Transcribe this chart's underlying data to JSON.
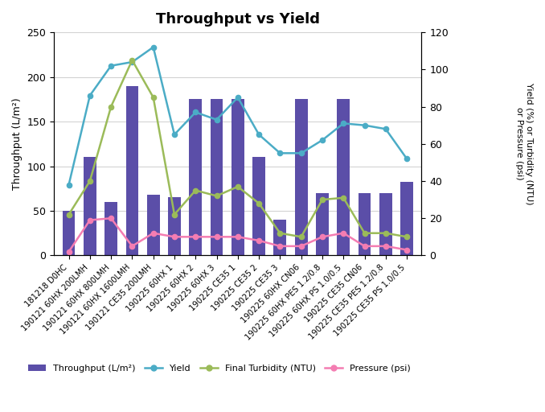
{
  "categories": [
    "181218 D0HC",
    "190121 60HX 200LMH",
    "190121 60HX 800LMH",
    "190121 60HX 1600LMH",
    "190121 CE35 200LMH",
    "190225 60HX 1",
    "190225 60HX 2",
    "190225 60HX 3",
    "190225 CE35 1",
    "190225 CE35 2",
    "190225 CE35 3",
    "190225 60HX CN06",
    "190225 60HX PES 1.2/0.8",
    "190225 60HX PS 1.0/0.5",
    "190225 CE35 CN06",
    "190225 CE35 PES 1.2/0.8",
    "190225 CE35 PS 1.0/0.5"
  ],
  "throughput": [
    50,
    110,
    60,
    190,
    68,
    65,
    175,
    175,
    175,
    110,
    40,
    175,
    70,
    175,
    70,
    70,
    82
  ],
  "yield_vals": [
    38,
    86,
    102,
    104,
    112,
    65,
    77,
    73,
    85,
    65,
    55,
    55,
    62,
    71,
    70,
    68,
    52
  ],
  "turbidity": [
    22,
    40,
    80,
    105,
    85,
    22,
    35,
    32,
    37,
    28,
    12,
    10,
    30,
    31,
    12,
    12,
    10
  ],
  "pressure": [
    2,
    19,
    20,
    5,
    12,
    10,
    10,
    10,
    10,
    8,
    5,
    5,
    10,
    12,
    5,
    5,
    3
  ],
  "bar_color": "#5b4ea8",
  "yield_color": "#4bacc6",
  "turbidity_color": "#9bbb59",
  "pressure_color": "#f47db2",
  "title": "Throughput vs Yield",
  "ylabel_left": "Throughput (L/m²)",
  "ylabel_right": "Yield (%) or Turbidity (NTU)\nor Pressure (psi)",
  "ylim_left": [
    0,
    250
  ],
  "ylim_right": [
    0,
    120
  ],
  "yticks_left": [
    0,
    50,
    100,
    150,
    200,
    250
  ],
  "yticks_right": [
    0,
    20,
    40,
    60,
    80,
    100,
    120
  ],
  "legend_labels": [
    "Throughput (L/m²)",
    "Yield",
    "Final Turbidity (NTU)",
    "Pressure (psi)"
  ]
}
